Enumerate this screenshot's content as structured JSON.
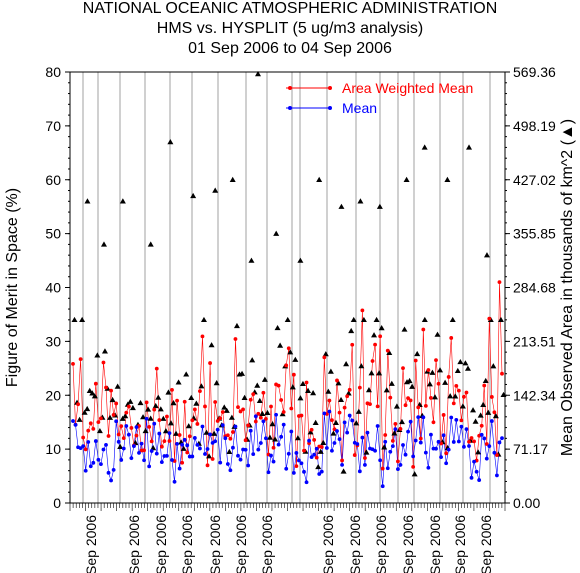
{
  "header": {
    "title_line1": "NATIONAL OCEANIC ATMOSPHERIC ADMINISTRATION",
    "title_line2": "HMS vs. HYSPLIT (5 ug/m3 analysis)",
    "title_line3": "01 Sep 2006 to 04 Sep 2006"
  },
  "chart_data": {
    "type": "scatter",
    "title": "HMS vs. HYSPLIT (5 ug/m3 analysis)",
    "ylabel": "Figure of Merit in Space (%)",
    "y2label": "Mean Observed Area in thousands of km^2 (▲)",
    "ylim": [
      0,
      80
    ],
    "yticks": [
      "0",
      "10",
      "20",
      "30",
      "40",
      "50",
      "60",
      "70",
      "80"
    ],
    "y2ticks": [
      "0.00",
      "71.17",
      "142.34",
      "213.51",
      "284.68",
      "355.85",
      "427.02",
      "498.19",
      "569.36"
    ],
    "xtick_label": "Sep 2006",
    "xtick_count": 15,
    "grid": "vertical",
    "legend_position": "top-right",
    "series": [
      {
        "name": "Area Weighted Mean",
        "color": "#ff0000",
        "marker": "circle",
        "line": true
      },
      {
        "name": "Mean",
        "color": "#0000ff",
        "marker": "circle",
        "line": true
      },
      {
        "name": "",
        "color": "#000000",
        "marker": "triangle",
        "line": false
      }
    ],
    "notable_points": {
      "triangle_max_y": 80,
      "triangle_high_values": [
        56,
        48,
        56,
        48,
        67,
        57,
        58,
        60,
        45,
        50,
        45,
        60,
        55,
        56,
        55,
        60,
        66,
        60,
        66,
        46
      ],
      "red_range": [
        2,
        41
      ],
      "blue_range": [
        2,
        26
      ]
    }
  }
}
